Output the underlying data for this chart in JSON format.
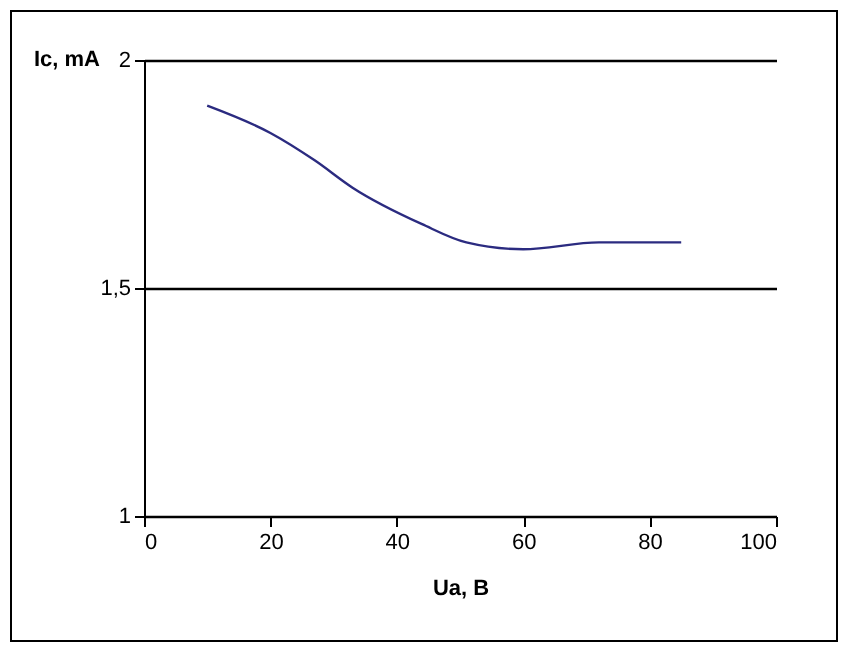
{
  "chart_data": {
    "type": "line",
    "xlabel": "Ua, B",
    "ylabel": "Ic, mA",
    "x": [
      10,
      20,
      27,
      33,
      44,
      51,
      60,
      72,
      85
    ],
    "series": [
      {
        "color": "#2b2b80",
        "values": [
          1.9,
          1.84,
          1.78,
          1.72,
          1.64,
          1.6,
          1.585,
          1.6,
          1.6
        ]
      }
    ],
    "xlim": [
      0,
      100
    ],
    "xticks": [
      0,
      20,
      40,
      60,
      80,
      100
    ],
    "ylim": [
      1,
      2
    ],
    "yticks": [
      1,
      {
        "value": 1.5,
        "label": "1,5"
      },
      2
    ],
    "grid": "y",
    "marker": "none",
    "line_style": "solid"
  }
}
